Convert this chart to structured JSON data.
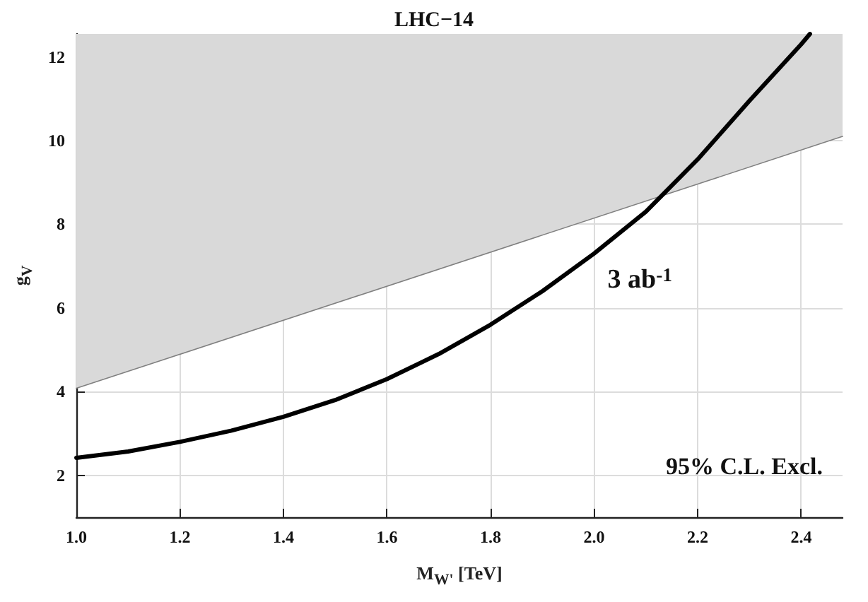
{
  "chart_data": {
    "type": "line",
    "title": "LHC−14",
    "xlabel": "M$_{W'}$ [TeV]",
    "ylabel": "g$_{V}$",
    "xlim": [
      1.0,
      2.48
    ],
    "xticks": [
      {
        "value": 1,
        "label": "1.0"
      },
      1.2,
      1.4,
      1.6,
      1.8,
      {
        "value": 2,
        "label": "2.0"
      },
      2.2,
      2.4
    ],
    "ylim": [
      1,
      12.55
    ],
    "yticks": [
      2,
      4,
      6,
      8,
      10,
      12
    ],
    "grid": true,
    "marker": "none",
    "line_style": "solid",
    "series": [
      {
        "color": "#808080",
        "x": [
          1.0,
          2.48
        ],
        "values": [
          4.08,
          10.1
        ],
        "lower": [
          4.08,
          10.1
        ],
        "upper": [
          12.55,
          12.55
        ]
      },
      {
        "color": "#000000",
        "x": [
          1.0,
          1.1,
          1.2,
          1.3,
          1.4,
          1.5,
          1.6,
          1.7,
          1.8,
          1.9,
          2.0,
          2.1,
          2.2,
          2.3,
          2.4,
          2.417
        ],
        "values": [
          2.42,
          2.57,
          2.8,
          3.07,
          3.4,
          3.8,
          4.3,
          4.9,
          5.6,
          6.4,
          7.3,
          8.3,
          9.55,
          10.95,
          12.3,
          12.55
        ]
      }
    ],
    "annotations": [
      "3 ab$^{-1}$",
      "95% C.L. Excl."
    ]
  }
}
